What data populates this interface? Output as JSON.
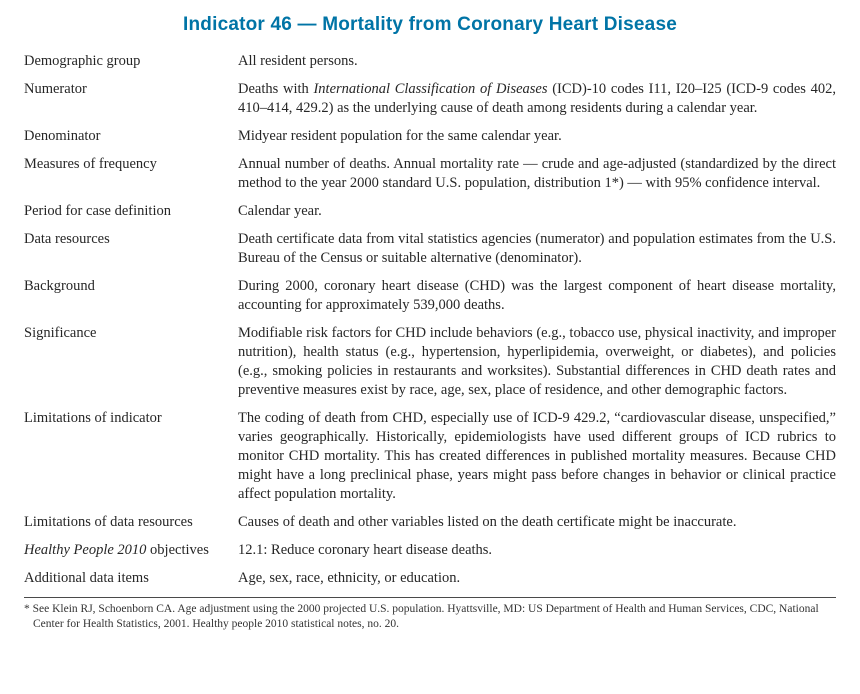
{
  "title": "Indicator 46 — Mortality from Coronary Heart Disease",
  "accent_color": "#0074a6",
  "rows": [
    {
      "label": [
        {
          "t": "Demographic group",
          "italic": false
        }
      ],
      "text": [
        {
          "t": "All resident persons.",
          "italic": false
        }
      ]
    },
    {
      "label": [
        {
          "t": "Numerator",
          "italic": false
        }
      ],
      "text": [
        {
          "t": "Deaths with ",
          "italic": false
        },
        {
          "t": "International Classification of Diseases",
          "italic": true
        },
        {
          "t": " (ICD)-10 codes I11, I20–I25 (ICD-9 codes 402, 410–414, 429.2) as the underlying cause of death among residents during a calendar year.",
          "italic": false
        }
      ]
    },
    {
      "label": [
        {
          "t": "Denominator",
          "italic": false
        }
      ],
      "text": [
        {
          "t": "Midyear resident population for the same calendar year.",
          "italic": false
        }
      ]
    },
    {
      "label": [
        {
          "t": "Measures of frequency",
          "italic": false
        }
      ],
      "text": [
        {
          "t": "Annual number of deaths. Annual mortality rate — crude and age-adjusted (standardized by the direct method to the year 2000 standard U.S. population, distribution 1*) — with 95% confidence interval.",
          "italic": false
        }
      ]
    },
    {
      "label": [
        {
          "t": "Period for case definition",
          "italic": false
        }
      ],
      "text": [
        {
          "t": "Calendar year.",
          "italic": false
        }
      ]
    },
    {
      "label": [
        {
          "t": "Data resources",
          "italic": false
        }
      ],
      "text": [
        {
          "t": "Death certificate data from vital statistics agencies (numerator) and population estimates from the U.S. Bureau of the Census or suitable alternative (denominator).",
          "italic": false
        }
      ]
    },
    {
      "label": [
        {
          "t": "Background",
          "italic": false
        }
      ],
      "text": [
        {
          "t": "During 2000, coronary heart disease (CHD) was the largest component of heart disease mortality, accounting for approximately 539,000 deaths.",
          "italic": false
        }
      ]
    },
    {
      "label": [
        {
          "t": "Significance",
          "italic": false
        }
      ],
      "text": [
        {
          "t": "Modifiable risk factors for CHD include behaviors (e.g., tobacco use, physical inactivity, and improper nutrition), health status (e.g., hypertension, hyperlipidemia, overweight, or diabetes), and policies (e.g., smoking policies in restaurants and worksites). Substantial differences in CHD death rates and preventive measures exist by race, age, sex, place of residence, and other demographic factors.",
          "italic": false
        }
      ]
    },
    {
      "label": [
        {
          "t": "Limitations of indicator",
          "italic": false
        }
      ],
      "text": [
        {
          "t": "The coding of death from CHD, especially use of ICD-9 429.2, “cardiovascular disease, unspecified,” varies geographically. Historically, epidemiologists have used different groups of ICD rubrics to monitor CHD mortality. This has created differences in published mortality measures. Because CHD might have a long preclinical phase, years might pass before changes in behavior or clinical practice affect population mortality.",
          "italic": false
        }
      ]
    },
    {
      "label": [
        {
          "t": "Limitations of data resources",
          "italic": false
        }
      ],
      "text": [
        {
          "t": "Causes of death and other variables listed on the death certificate might be inaccurate.",
          "italic": false
        }
      ]
    },
    {
      "label": [
        {
          "t": "Healthy People 2010",
          "italic": true
        },
        {
          "t": " objectives",
          "italic": false
        }
      ],
      "text": [
        {
          "t": "12.1: Reduce coronary heart disease deaths.",
          "italic": false
        }
      ]
    },
    {
      "label": [
        {
          "t": "Additional data items",
          "italic": false
        }
      ],
      "text": [
        {
          "t": "Age, sex, race, ethnicity, or education.",
          "italic": false
        }
      ]
    }
  ],
  "footnote": "* See Klein RJ, Schoenborn CA. Age adjustment using the 2000 projected U.S. population. Hyattsville, MD: US Department of Health and Human Services, CDC, National Center for Health Statistics, 2001. Healthy people 2010 statistical notes, no. 20."
}
